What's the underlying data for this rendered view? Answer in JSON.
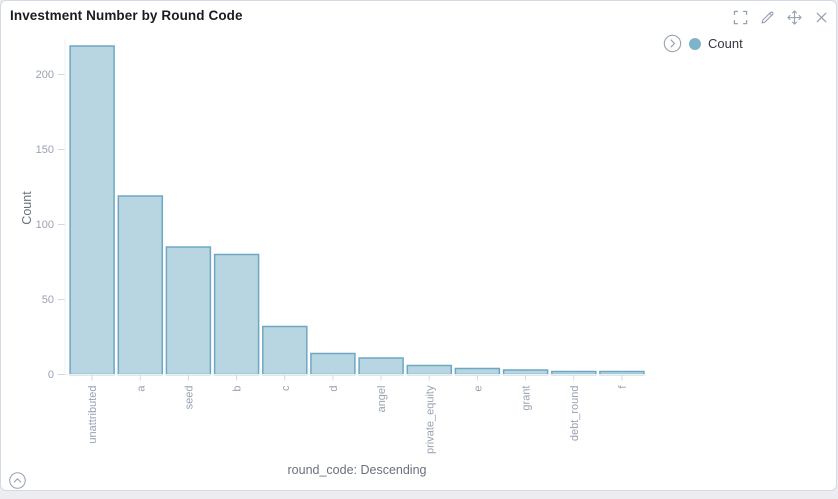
{
  "panel": {
    "title": "Investment Number by Round Code"
  },
  "toolbar": {
    "icons": [
      "fullscreen",
      "edit-pencil",
      "move",
      "close"
    ]
  },
  "legend": {
    "expand_icon": "chevron-right",
    "items": [
      {
        "label": "Count",
        "color": "#7db4cb"
      }
    ]
  },
  "chart_data": {
    "type": "bar",
    "title": "Investment Number by Round Code",
    "categories": [
      "unattributed",
      "a",
      "seed",
      "b",
      "c",
      "d",
      "angel",
      "private_equity",
      "e",
      "grant",
      "debt_round",
      "f"
    ],
    "series": [
      {
        "name": "Count",
        "values": [
          219,
          119,
          85,
          80,
          32,
          14,
          11,
          6,
          4,
          3,
          2,
          2
        ]
      }
    ],
    "xlabel": "round_code: Descending",
    "ylabel": "Count",
    "ylim": [
      0,
      222
    ],
    "yticks": [
      0,
      50,
      100,
      150,
      200
    ],
    "grid": false,
    "legend_position": "top-right",
    "bar_fill": "#b8d5e2",
    "bar_stroke": "#6ea7c4"
  },
  "footer": {
    "collapse_icon": "chevron-up"
  },
  "colors": {
    "page_background": "#ececf1",
    "panel_border": "#d3dae6",
    "title_text": "#1a1c21",
    "axis_tick_label": "#98a2b3",
    "axis_title_text": "#69707d",
    "icon": "#98a2b3",
    "legend_text": "#343741",
    "tick_line": "#d3dae6",
    "axis_line": "#edf0f3"
  }
}
